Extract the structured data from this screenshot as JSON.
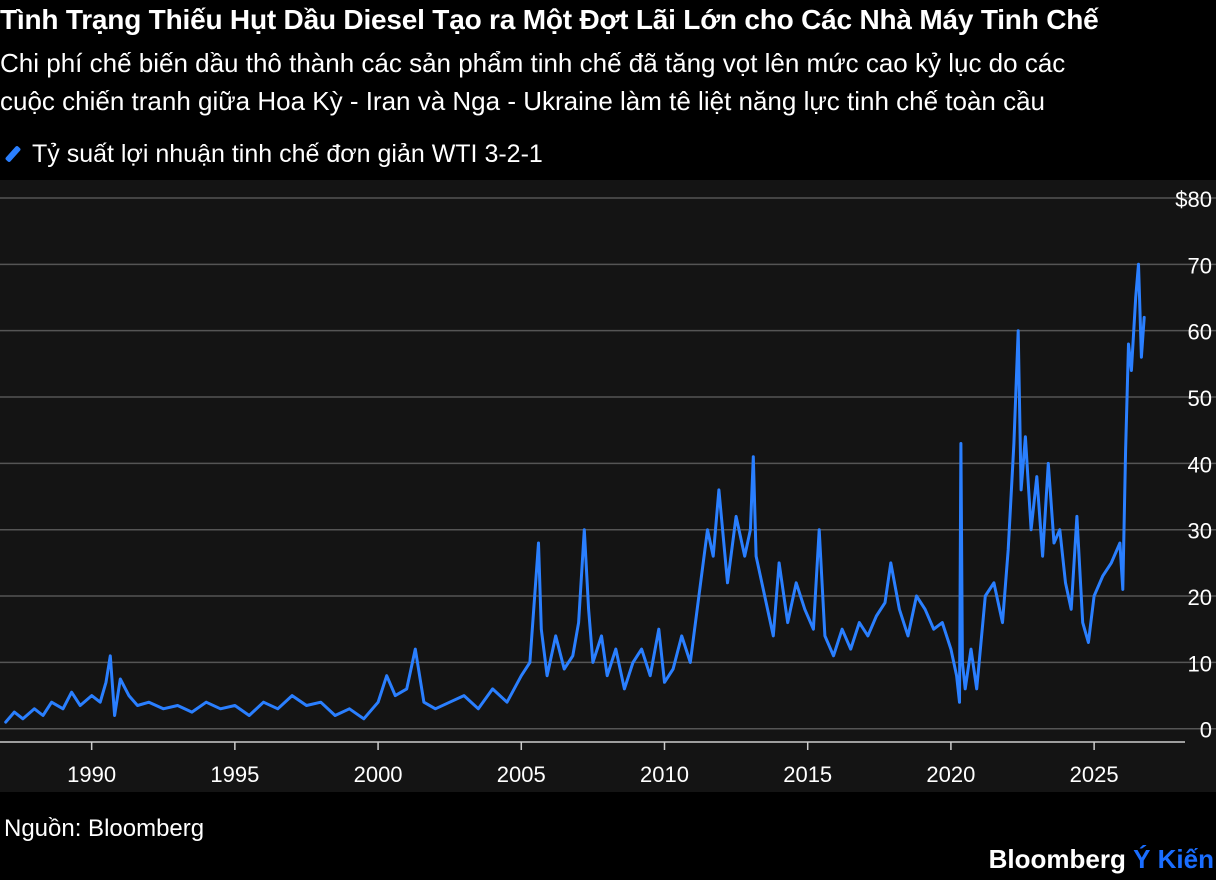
{
  "header": {
    "title": "Tình Trạng Thiếu Hụt Dầu Diesel Tạo ra Một Đợt Lãi Lớn cho Các Nhà Máy Tinh Chế",
    "subtitle_line1": "Chi phí chế biến dầu thô thành các sản phẩm tinh chế đã tăng vọt lên mức cao kỷ lục do các",
    "subtitle_line2": "cuộc chiến tranh giữa Hoa Kỳ - Iran và Nga - Ukraine làm tê liệt năng lực tinh chế toàn cầu"
  },
  "legend": {
    "label": "Tỷ suất lợi nhuận tinh chế đơn giản WTI 3-2-1"
  },
  "footer": {
    "source": "Nguồn: Bloomberg",
    "brand_name": "Bloomberg",
    "brand_accent": "Ý Kiến"
  },
  "colors": {
    "background": "#000000",
    "plot_background": "#141414",
    "series": "#2a7fff",
    "grid": "#555555",
    "text": "#ffffff",
    "brand_accent": "#1a6dff"
  },
  "chart_data": {
    "type": "line",
    "title": "Tình Trạng Thiếu Hụt Dầu Diesel Tạo ra Một Đợt Lãi Lớn cho Các Nhà Máy Tinh Chế",
    "xlabel": "",
    "ylabel": "",
    "xlim": [
      1986.8,
      2027.3
    ],
    "ylim": [
      -2,
      80
    ],
    "y_ticks": [
      0,
      10,
      20,
      30,
      40,
      50,
      60,
      70,
      80
    ],
    "y_tick_labels": [
      "0",
      "10",
      "20",
      "30",
      "40",
      "50",
      "60",
      "70",
      "$80"
    ],
    "x_ticks": [
      1990,
      1995,
      2000,
      2005,
      2010,
      2015,
      2020,
      2025
    ],
    "x_tick_labels": [
      "1990",
      "1995",
      "2000",
      "2005",
      "2010",
      "2015",
      "2020",
      "2025"
    ],
    "grid": true,
    "y_axis_side": "right",
    "legend_position": "top-left",
    "series": [
      {
        "name": "Tỷ suất lợi nhuận tinh chế đơn giản WTI 3-2-1",
        "x": [
          1987.0,
          1987.3,
          1987.6,
          1988.0,
          1988.3,
          1988.6,
          1989.0,
          1989.3,
          1989.6,
          1990.0,
          1990.3,
          1990.5,
          1990.65,
          1990.8,
          1991.0,
          1991.3,
          1991.6,
          1992.0,
          1992.5,
          1993.0,
          1993.5,
          1994.0,
          1994.5,
          1995.0,
          1995.5,
          1996.0,
          1996.5,
          1997.0,
          1997.5,
          1998.0,
          1998.5,
          1999.0,
          1999.5,
          2000.0,
          2000.3,
          2000.6,
          2001.0,
          2001.3,
          2001.6,
          2002.0,
          2002.5,
          2003.0,
          2003.5,
          2004.0,
          2004.5,
          2005.0,
          2005.3,
          2005.6,
          2005.7,
          2005.9,
          2006.2,
          2006.5,
          2006.8,
          2007.0,
          2007.2,
          2007.35,
          2007.5,
          2007.8,
          2008.0,
          2008.3,
          2008.6,
          2008.9,
          2009.2,
          2009.5,
          2009.8,
          2010.0,
          2010.3,
          2010.6,
          2010.9,
          2011.2,
          2011.5,
          2011.7,
          2011.9,
          2012.2,
          2012.5,
          2012.8,
          2013.0,
          2013.1,
          2013.2,
          2013.5,
          2013.8,
          2014.0,
          2014.3,
          2014.6,
          2014.9,
          2015.2,
          2015.4,
          2015.6,
          2015.9,
          2016.2,
          2016.5,
          2016.8,
          2017.1,
          2017.4,
          2017.7,
          2017.9,
          2018.2,
          2018.5,
          2018.8,
          2019.1,
          2019.4,
          2019.7,
          2020.0,
          2020.2,
          2020.3,
          2020.35,
          2020.4,
          2020.5,
          2020.7,
          2020.9,
          2021.2,
          2021.5,
          2021.8,
          2022.0,
          2022.2,
          2022.35,
          2022.45,
          2022.6,
          2022.8,
          2023.0,
          2023.2,
          2023.4,
          2023.6,
          2023.8,
          2024.0,
          2024.2,
          2024.4,
          2024.6,
          2024.8,
          2025.0,
          2025.3,
          2025.6,
          2025.9,
          2026.0,
          2026.1,
          2026.2,
          2026.3,
          2026.45,
          2026.55,
          2026.65,
          2026.75
        ],
        "y": [
          1,
          2.5,
          1.5,
          3,
          2,
          4,
          3,
          5.5,
          3.5,
          5,
          4,
          7,
          11,
          2,
          7.5,
          5,
          3.5,
          4,
          3,
          3.5,
          2.5,
          4,
          3,
          3.5,
          2,
          4,
          3,
          5,
          3.5,
          4,
          2,
          3,
          1.5,
          4,
          8,
          5,
          6,
          12,
          4,
          3,
          4,
          5,
          3,
          6,
          4,
          8,
          10,
          28,
          15,
          8,
          14,
          9,
          11,
          16,
          30,
          18,
          10,
          14,
          8,
          12,
          6,
          10,
          12,
          8,
          15,
          7,
          9,
          14,
          10,
          20,
          30,
          26,
          36,
          22,
          32,
          26,
          30,
          41,
          26,
          20,
          14,
          25,
          16,
          22,
          18,
          15,
          30,
          14,
          11,
          15,
          12,
          16,
          14,
          17,
          19,
          25,
          18,
          14,
          20,
          18,
          15,
          16,
          12,
          8,
          4,
          43,
          10,
          6,
          12,
          6,
          20,
          22,
          16,
          27,
          43,
          60,
          36,
          44,
          30,
          38,
          26,
          40,
          28,
          30,
          22,
          18,
          32,
          16,
          13,
          20,
          23,
          25,
          28,
          21,
          42,
          58,
          54,
          65,
          70,
          56,
          62
        ]
      }
    ]
  }
}
